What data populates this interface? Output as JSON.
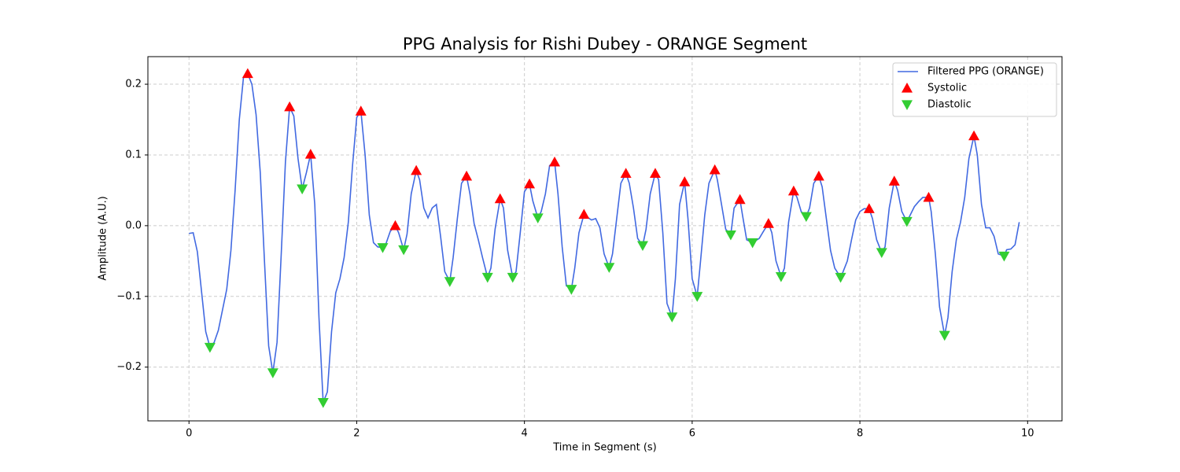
{
  "chart_data": {
    "type": "line",
    "title": "PPG Analysis for Rishi Dubey - ORANGE Segment",
    "xlabel": "Time in Segment (s)",
    "ylabel": "Amplitude (A.U.)",
    "xlim": [
      -0.49,
      10.41
    ],
    "ylim": [
      -0.276,
      0.239
    ],
    "xticks": [
      0,
      2,
      4,
      6,
      8,
      10
    ],
    "yticks": [
      {
        "value": -0.2,
        "label": "−0.2"
      },
      {
        "value": -0.1,
        "label": "−0.1"
      },
      {
        "value": 0,
        "label": "0.0"
      },
      0.1,
      0.2
    ],
    "grid": true,
    "legend": "upper right",
    "series": [
      {
        "name": "Filtered PPG (ORANGE)",
        "type": "line",
        "color": "#4169e1",
        "x": [
          0,
          0.05,
          0.1,
          0.2,
          0.25,
          0.3,
          0.35,
          0.45,
          0.5,
          0.55,
          0.6,
          0.65,
          0.7,
          0.75,
          0.8,
          0.85,
          0.9,
          0.95,
          1.0,
          1.05,
          1.1,
          1.15,
          1.2,
          1.25,
          1.3,
          1.35,
          1.4,
          1.45,
          1.5,
          1.55,
          1.6,
          1.65,
          1.7,
          1.75,
          1.8,
          1.85,
          1.9,
          1.95,
          2.0,
          2.05,
          2.1,
          2.15,
          2.2,
          2.25,
          2.31,
          2.35,
          2.4,
          2.46,
          2.5,
          2.56,
          2.6,
          2.65,
          2.71,
          2.75,
          2.8,
          2.85,
          2.9,
          2.95,
          3.0,
          3.05,
          3.11,
          3.15,
          3.2,
          3.25,
          3.31,
          3.35,
          3.4,
          3.45,
          3.5,
          3.56,
          3.6,
          3.65,
          3.71,
          3.75,
          3.8,
          3.86,
          3.9,
          3.95,
          4.0,
          4.06,
          4.1,
          4.16,
          4.2,
          4.25,
          4.3,
          4.36,
          4.4,
          4.45,
          4.5,
          4.56,
          4.6,
          4.65,
          4.71,
          4.75,
          4.8,
          4.85,
          4.9,
          4.95,
          5.01,
          5.05,
          5.1,
          5.15,
          5.21,
          5.25,
          5.3,
          5.35,
          5.41,
          5.45,
          5.5,
          5.56,
          5.6,
          5.65,
          5.7,
          5.76,
          5.8,
          5.85,
          5.91,
          5.95,
          6.0,
          6.06,
          6.1,
          6.15,
          6.2,
          6.27,
          6.3,
          6.35,
          6.4,
          6.46,
          6.5,
          6.57,
          6.6,
          6.65,
          6.72,
          6.8,
          6.85,
          6.91,
          6.95,
          7.0,
          7.06,
          7.1,
          7.15,
          7.21,
          7.25,
          7.3,
          7.36,
          7.4,
          7.45,
          7.51,
          7.55,
          7.6,
          7.65,
          7.7,
          7.77,
          7.8,
          7.85,
          7.9,
          7.95,
          8.0,
          8.05,
          8.11,
          8.15,
          8.2,
          8.26,
          8.3,
          8.35,
          8.41,
          8.45,
          8.5,
          8.56,
          8.6,
          8.65,
          8.7,
          8.75,
          8.82,
          8.85,
          8.9,
          8.95,
          9.01,
          9.05,
          9.1,
          9.15,
          9.2,
          9.25,
          9.3,
          9.36,
          9.4,
          9.45,
          9.5,
          9.55,
          9.6,
          9.65,
          9.72,
          9.75,
          9.8,
          9.85,
          9.9
        ],
        "values": [
          -0.011,
          -0.01,
          -0.037,
          -0.15,
          -0.172,
          -0.165,
          -0.148,
          -0.09,
          -0.035,
          0.05,
          0.15,
          0.21,
          0.215,
          0.2,
          0.157,
          0.075,
          -0.05,
          -0.17,
          -0.208,
          -0.165,
          -0.04,
          0.09,
          0.168,
          0.155,
          0.095,
          0.052,
          0.075,
          0.101,
          0.03,
          -0.13,
          -0.25,
          -0.235,
          -0.15,
          -0.095,
          -0.075,
          -0.045,
          0.005,
          0.085,
          0.153,
          0.162,
          0.1,
          0.015,
          -0.024,
          -0.03,
          -0.031,
          -0.025,
          -0.008,
          0.0,
          -0.01,
          -0.034,
          -0.012,
          0.045,
          0.078,
          0.065,
          0.025,
          0.011,
          0.025,
          0.03,
          -0.015,
          -0.065,
          -0.079,
          -0.045,
          0.01,
          0.06,
          0.07,
          0.045,
          0.003,
          -0.02,
          -0.045,
          -0.073,
          -0.06,
          -0.005,
          0.038,
          0.025,
          -0.035,
          -0.073,
          -0.065,
          -0.01,
          0.048,
          0.059,
          0.035,
          0.011,
          0.02,
          0.045,
          0.085,
          0.09,
          0.045,
          -0.03,
          -0.085,
          -0.09,
          -0.06,
          -0.01,
          0.016,
          0.012,
          0.008,
          0.01,
          -0.003,
          -0.04,
          -0.059,
          -0.04,
          0.01,
          0.06,
          0.074,
          0.06,
          0.025,
          -0.018,
          -0.028,
          -0.005,
          0.045,
          0.074,
          0.065,
          -0.01,
          -0.11,
          -0.129,
          -0.075,
          0.03,
          0.062,
          0.01,
          -0.075,
          -0.1,
          -0.05,
          0.015,
          0.06,
          0.079,
          0.065,
          0.03,
          -0.005,
          -0.013,
          0.025,
          0.037,
          0.015,
          -0.02,
          -0.024,
          -0.018,
          -0.008,
          0.003,
          -0.01,
          -0.05,
          -0.072,
          -0.06,
          0.005,
          0.049,
          0.04,
          0.02,
          0.013,
          0.025,
          0.06,
          0.07,
          0.055,
          0.01,
          -0.035,
          -0.06,
          -0.073,
          -0.065,
          -0.05,
          -0.02,
          0.008,
          0.02,
          0.024,
          0.024,
          0.01,
          -0.02,
          -0.038,
          -0.03,
          0.025,
          0.063,
          0.05,
          0.02,
          0.006,
          0.015,
          0.027,
          0.034,
          0.04,
          0.04,
          0.02,
          -0.04,
          -0.115,
          -0.155,
          -0.13,
          -0.065,
          -0.02,
          0.005,
          0.04,
          0.095,
          0.127,
          0.1,
          0.03,
          -0.003,
          -0.003,
          -0.015,
          -0.04,
          -0.043,
          -0.034,
          -0.033,
          -0.027,
          0.005
        ]
      },
      {
        "name": "Systolic",
        "type": "scatter",
        "marker": "triangle-up",
        "color": "#ff0000",
        "x": [
          0.7,
          1.2,
          1.45,
          2.05,
          2.46,
          2.71,
          3.31,
          3.71,
          4.06,
          4.36,
          4.71,
          5.21,
          5.56,
          5.91,
          6.27,
          6.57,
          6.91,
          7.21,
          7.51,
          8.11,
          8.41,
          8.82,
          9.36
        ],
        "values": [
          0.215,
          0.168,
          0.101,
          0.162,
          0.0,
          0.078,
          0.07,
          0.038,
          0.059,
          0.09,
          0.016,
          0.074,
          0.074,
          0.062,
          0.079,
          0.037,
          0.003,
          0.049,
          0.07,
          0.024,
          0.063,
          0.04,
          0.127
        ]
      },
      {
        "name": "Diastolic",
        "type": "scatter",
        "marker": "triangle-down",
        "color": "#32cd32",
        "x": [
          0.25,
          1.0,
          1.35,
          1.6,
          2.31,
          2.56,
          3.11,
          3.56,
          3.86,
          4.16,
          4.56,
          5.01,
          5.41,
          5.76,
          6.06,
          6.46,
          6.72,
          7.06,
          7.36,
          7.77,
          8.26,
          8.56,
          9.01,
          9.72
        ],
        "values": [
          -0.172,
          -0.208,
          0.052,
          -0.25,
          -0.031,
          -0.034,
          -0.079,
          -0.073,
          -0.073,
          0.011,
          -0.09,
          -0.059,
          -0.028,
          -0.129,
          -0.1,
          -0.013,
          -0.024,
          -0.072,
          0.013,
          -0.073,
          -0.038,
          0.006,
          -0.155,
          -0.043
        ]
      }
    ]
  }
}
